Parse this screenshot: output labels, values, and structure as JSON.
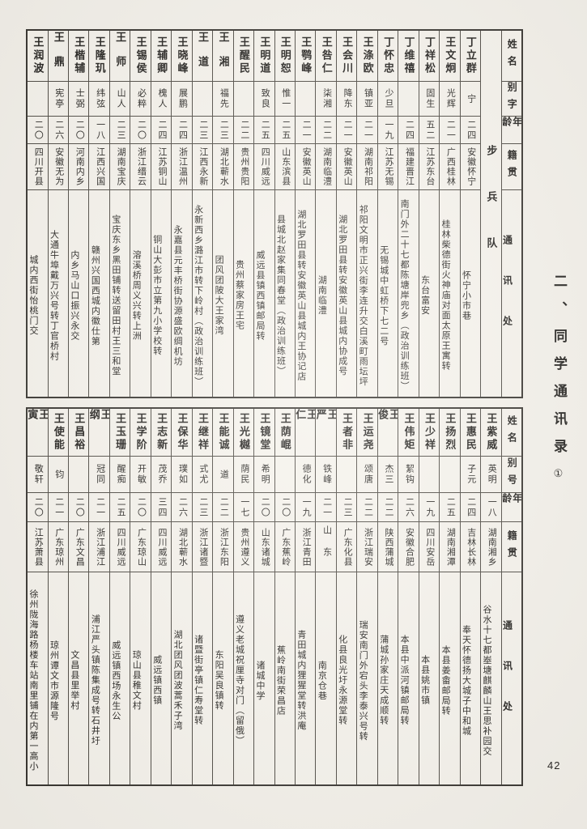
{
  "page": {
    "title_vertical": "二、同学通讯录",
    "title_mark": "①",
    "page_number": "42"
  },
  "top_section": {
    "headers": {
      "name": "姓名",
      "alias": "别字",
      "age": "年龄",
      "origin": "籍贯",
      "address": "通讯处"
    },
    "unit_column": "步兵队",
    "entries": [
      {
        "name": "丁立群",
        "alias": "宁",
        "age": "二四",
        "origin": "安徽怀宁",
        "address": "怀宁小市巷"
      },
      {
        "name": "王文炯",
        "alias": "光辉",
        "age": "二一",
        "origin": "广西桂林",
        "address": "桂林柴德街火神庙对面太原王寓转"
      },
      {
        "name": "丁祥松",
        "alias": "固生",
        "age": "五二",
        "origin": "江苏东台",
        "address": "东台富安"
      },
      {
        "name": "丁维禧",
        "alias": "",
        "age": "二四",
        "origin": "福建晋江",
        "address": "南门外二十七都陈塘岸兜乡（政治训练班）"
      },
      {
        "name": "丁怀忠",
        "alias": "少旦",
        "age": "一九",
        "origin": "江苏无锡",
        "address": "无锡城中虹桥下七二号"
      },
      {
        "name": "王涤欧",
        "alias": "镇亚",
        "age": "二一",
        "origin": "湖南祁阳",
        "address": "祁阳文明市正兴街李连升交白溪町雨坛坪"
      },
      {
        "name": "王会川",
        "alias": "降东",
        "age": "二一",
        "origin": "安徽英山",
        "address": "湖北罗田县转安徽英山县城内协成号"
      },
      {
        "name": "王咎仁",
        "alias": "柒湘",
        "age": "二二",
        "origin": "湖南临澧",
        "address": "湖南临澧"
      },
      {
        "name": "王鹗峰",
        "alias": "",
        "age": "二一",
        "origin": "安徽英山",
        "address": "湖北罗田县转安徽英山县城内王协记店"
      },
      {
        "name": "王明恕",
        "alias": "惟一",
        "age": "二五",
        "origin": "山东滨县",
        "address": "县城北赵家集同春堂（政治训练班）"
      },
      {
        "name": "王明道",
        "alias": "致良",
        "age": "二五",
        "origin": "四川威远",
        "address": "威远县镇西镇邮局转"
      },
      {
        "name": "王醒民",
        "alias": "",
        "age": "二二",
        "origin": "贵州贵阳",
        "address": "贵州蔡家房王宅"
      },
      {
        "name": "王湘",
        "alias": "福先",
        "age": "二三",
        "origin": "湖北蕲水",
        "address": "团风团陂大王家湾"
      },
      {
        "name": "王道",
        "alias": "",
        "age": "二三",
        "origin": "江西永新",
        "address": "永新西乡潞江市转下岭村（政治训练班）"
      },
      {
        "name": "王晓峰",
        "alias": "展鹏",
        "age": "二四",
        "origin": "浙江温州",
        "address": "永嘉县元丰桥街协源盛欧绸机坊"
      },
      {
        "name": "王辅卿",
        "alias": "槐人",
        "age": "二四",
        "origin": "江苏铜山",
        "address": "铜山大彭市立第九小学校转"
      },
      {
        "name": "王锡侯",
        "alias": "必粹",
        "age": "二〇",
        "origin": "浙江缙云",
        "address": "溶溪桥周义兴转上洲"
      },
      {
        "name": "王师",
        "alias": "山人",
        "age": "二三",
        "origin": "湖南宝庆",
        "address": "宝庆东乡黑田铺转送留田村王三和堂"
      },
      {
        "name": "王隆玑",
        "alias": "纬弦",
        "age": "一八",
        "origin": "江西兴国",
        "address": "赣州兴国西城内徽仕第"
      },
      {
        "name": "王楷辅",
        "alias": "士弼",
        "age": "二〇",
        "origin": "河南内乡",
        "address": "内乡马山口振兴永交"
      },
      {
        "name": "王鼎",
        "alias": "宪亭",
        "age": "二六",
        "origin": "安徽无为",
        "address": "大通牛埠戴万兴号转丁官桥村"
      },
      {
        "name": "王润波",
        "alias": "",
        "age": "二〇",
        "origin": "四川开县",
        "address": "城内西街怡桃门交"
      }
    ]
  },
  "bottom_section": {
    "headers": {
      "name": "姓名",
      "alias": "别号",
      "age": "年龄",
      "origin": "籍贯",
      "address": "通讯处"
    },
    "unit_column": "",
    "entries": [
      {
        "name": "王紫威",
        "alias": "英明",
        "age": "一八",
        "origin": "湖南湘乡",
        "address": "谷水十七都峚塘麒麟山王思补园交"
      },
      {
        "name": "王惠民",
        "alias": "子元",
        "age": "二四",
        "origin": "吉林长林",
        "address": "奉天怀德扬大城子中和城"
      },
      {
        "name": "王扬烈",
        "alias": "",
        "age": "二五",
        "origin": "湖南湘潭",
        "address": "本县姜畬邮局转"
      },
      {
        "name": "王少祥",
        "alias": "",
        "age": "一九",
        "origin": "四川安岳",
        "address": "本县姚市镇"
      },
      {
        "name": "王伟矩",
        "alias": "絜钩",
        "age": "二六",
        "origin": "安徽合肥",
        "address": "本县中派河镇邮局转"
      },
      {
        "name": "王俊",
        "alias": "杰三",
        "age": "二二",
        "origin": "陕西蒲城",
        "address": "蒲城孙家庄天成顺转"
      },
      {
        "name": "王运尧",
        "alias": "颂唐",
        "age": "二二",
        "origin": "浙江瑞安",
        "address": "瑞安南门外宕头李泰兴号转"
      },
      {
        "name": "王者非",
        "alias": "",
        "age": "二三",
        "origin": "广东化县",
        "address": "化县良光圩永源堂转"
      },
      {
        "name": "王严",
        "alias": "铁峰",
        "age": "二一",
        "origin": "山东",
        "address": "南京仓巷"
      },
      {
        "name": "王仁",
        "alias": "德化",
        "age": "一九",
        "origin": "浙江青田",
        "address": "青田城内狸猩堂转洪庵"
      },
      {
        "name": "王荫崐",
        "alias": "",
        "age": "二〇",
        "origin": "广东蕉岭",
        "address": "蕉岭南街荣昌店"
      },
      {
        "name": "王镜堂",
        "alias": "希明",
        "age": "二〇",
        "origin": "山东诸城",
        "address": "诸城中学"
      },
      {
        "name": "王光樾",
        "alias": "荫民",
        "age": "一七",
        "origin": "贵州遵义",
        "address": "遵义老城祝厘寺对门（留俄）"
      },
      {
        "name": "王能诚",
        "alias": "道",
        "age": "二二",
        "origin": "浙江东阳",
        "address": "东阳吴良镇转"
      },
      {
        "name": "王继祥",
        "alias": "式尤",
        "age": "二三",
        "origin": "浙江诸暨",
        "address": "诸暨街亭镇仁寿堂转"
      },
      {
        "name": "王保华",
        "alias": "璞如",
        "age": "二六",
        "origin": "湖北蕲水",
        "address": "湖北团风团波蒿禾子湾"
      },
      {
        "name": "王志新",
        "alias": "茂乔",
        "age": "三四",
        "origin": "四川威远",
        "address": "威远镇西镇"
      },
      {
        "name": "王学阶",
        "alias": "开敏",
        "age": "二〇",
        "origin": "广东琼山",
        "address": "琼山县稚文村"
      },
      {
        "name": "王玉珊",
        "alias": "醒痴",
        "age": "二五",
        "origin": "四川威远",
        "address": "威远镇西场永生公"
      },
      {
        "name": "王纲",
        "alias": "冠同",
        "age": "二一",
        "origin": "浙江浦江",
        "address": "浦江严头镇陈集成号转石井圩"
      },
      {
        "name": "王昌裕",
        "alias": "",
        "age": "二〇",
        "origin": "广东文昌",
        "address": "文昌县里举村"
      },
      {
        "name": "王使能",
        "alias": "钧",
        "age": "二一",
        "origin": "广东琼州",
        "address": "琼州谭文市源隆号"
      },
      {
        "name": "王寅",
        "alias": "敬轩",
        "age": "二〇",
        "origin": "江苏萧县",
        "address": "徐州陇海路杨楼车站南里铺在内第一高小"
      }
    ]
  }
}
